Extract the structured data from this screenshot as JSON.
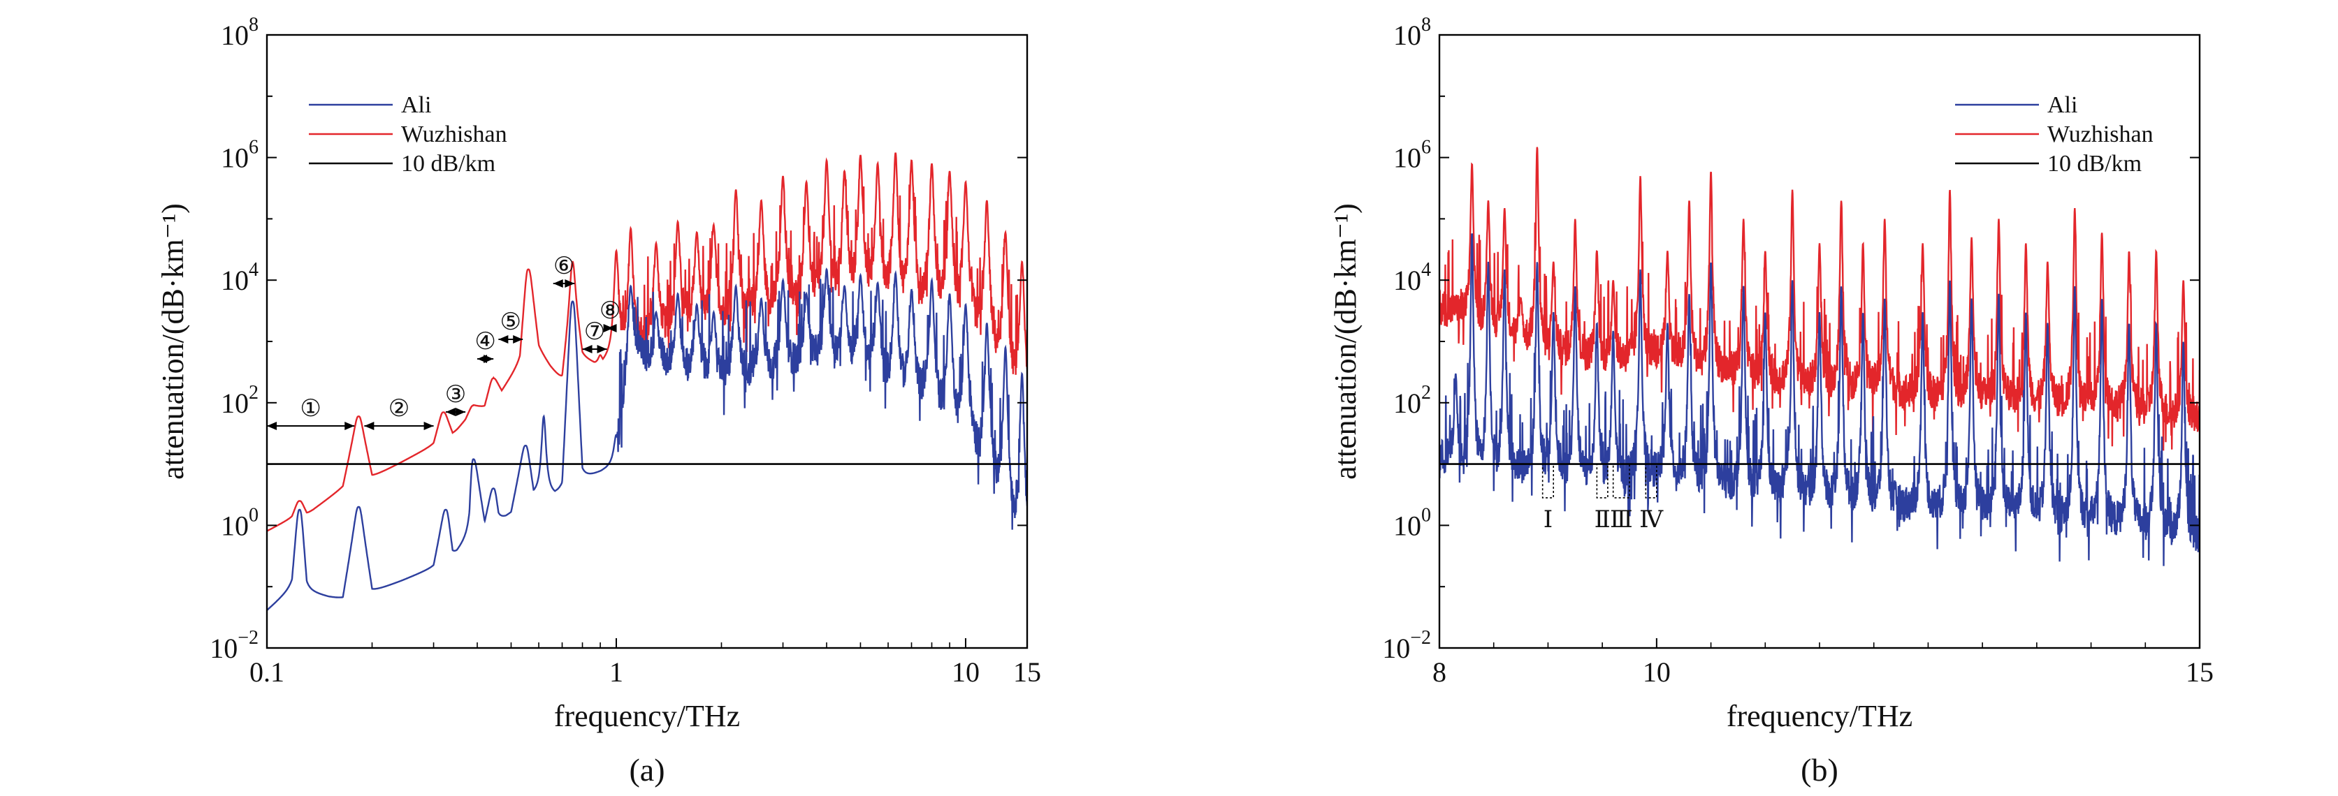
{
  "colors": {
    "ali": "#2d3f9e",
    "wuzhishan": "#e3262b",
    "threshold": "#000000"
  },
  "chart_data": [
    {
      "type": "line",
      "caption": "(a)",
      "xlabel": "frequency/THz",
      "ylabel": "attenuation/(dB·km⁻¹)",
      "x_scale": "log",
      "y_scale": "log",
      "xlim": [
        0.1,
        15
      ],
      "ylim": [
        0.01,
        100000000
      ],
      "x_ticks": [
        "0.1",
        "1",
        "10",
        "15"
      ],
      "y_ticks": [
        {
          "base": "10",
          "exp": "−2"
        },
        {
          "base": "10",
          "exp": "0"
        },
        {
          "base": "10",
          "exp": "2"
        },
        {
          "base": "10",
          "exp": "4"
        },
        {
          "base": "10",
          "exp": "6"
        },
        {
          "base": "10",
          "exp": "8"
        }
      ],
      "legend_position": "top-left",
      "legend": [
        "Ali",
        "Wuzhishan",
        "10 dB/km"
      ],
      "threshold_db_per_km": 10,
      "series": [
        {
          "name": "Ali",
          "x": [
            0.1,
            0.118,
            0.124,
            0.13,
            0.165,
            0.183,
            0.2,
            0.3,
            0.325,
            0.34,
            0.38,
            0.39,
            0.42,
            0.445,
            0.46,
            0.5,
            0.55,
            0.58,
            0.7,
            0.75,
            0.8,
            1.0,
            1.1,
            1.5,
            2.0,
            3.0,
            4.0,
            5.0,
            6.0,
            8.0,
            10.0,
            12.0,
            15.0
          ],
          "y": [
            0.04,
            0.09,
            1.8,
            0.08,
            0.06,
            2.0,
            0.08,
            0.2,
            1.8,
            0.3,
            0.6,
            12,
            1.0,
            4.0,
            1.2,
            1.5,
            20,
            3.0,
            3.0,
            4500,
            5.0,
            10,
            500,
            300,
            200,
            300,
            500,
            400,
            200,
            100,
            30,
            5,
            0.3
          ],
          "peaks": [
            [
              0.124,
              1.8
            ],
            [
              0.183,
              2.0
            ],
            [
              0.325,
              1.8
            ],
            [
              0.39,
              12
            ],
            [
              0.445,
              4
            ],
            [
              0.55,
              20
            ],
            [
              0.62,
              60
            ],
            [
              0.75,
              4500
            ],
            [
              1.0,
              30
            ],
            [
              1.1,
              8000
            ],
            [
              1.3,
              3000
            ],
            [
              1.5,
              6000
            ],
            [
              1.7,
              4000
            ],
            [
              1.9,
              3000
            ],
            [
              2.2,
              8000
            ],
            [
              2.6,
              5000
            ],
            [
              3.0,
              10000
            ],
            [
              3.5,
              6000
            ],
            [
              4.0,
              15000
            ],
            [
              4.5,
              8000
            ],
            [
              5.0,
              12000
            ],
            [
              5.6,
              9000
            ],
            [
              6.3,
              13000
            ],
            [
              7.0,
              7000
            ],
            [
              8.0,
              10000
            ],
            [
              9.0,
              6000
            ],
            [
              10.0,
              4000
            ],
            [
              11.5,
              2000
            ],
            [
              13.0,
              800
            ],
            [
              14.5,
              300
            ]
          ]
        },
        {
          "name": "Wuzhishan",
          "x": [
            0.1,
            0.118,
            0.124,
            0.13,
            0.165,
            0.183,
            0.2,
            0.3,
            0.32,
            0.34,
            0.37,
            0.39,
            0.42,
            0.445,
            0.47,
            0.53,
            0.56,
            0.6,
            0.7,
            0.75,
            0.8,
            0.9,
            1.0,
            1.5,
            2.0,
            3.0,
            4.0,
            5.0,
            6.0,
            8.0,
            10.0,
            12.0,
            15.0
          ],
          "y": [
            0.8,
            1.3,
            2.5,
            1.5,
            4.0,
            60,
            6.0,
            20,
            70,
            30,
            50,
            90,
            80,
            250,
            150,
            400,
            15000,
            700,
            200,
            5000,
            500,
            400,
            600,
            1500,
            2000,
            3000,
            5000,
            6000,
            5000,
            4000,
            3000,
            600,
            100
          ],
          "peaks": [
            [
              0.124,
              2.5
            ],
            [
              0.183,
              60
            ],
            [
              0.32,
              70
            ],
            [
              0.39,
              90
            ],
            [
              0.445,
              250
            ],
            [
              0.56,
              15000
            ],
            [
              0.75,
              20000
            ],
            [
              0.9,
              600
            ],
            [
              1.0,
              30000
            ],
            [
              1.1,
              70000
            ],
            [
              1.3,
              40000
            ],
            [
              1.5,
              90000
            ],
            [
              1.7,
              60000
            ],
            [
              1.9,
              80000
            ],
            [
              2.2,
              300000
            ],
            [
              2.6,
              200000
            ],
            [
              3.0,
              500000
            ],
            [
              3.5,
              400000
            ],
            [
              4.0,
              900000
            ],
            [
              4.5,
              600000
            ],
            [
              5.0,
              1100000
            ],
            [
              5.6,
              800000
            ],
            [
              6.3,
              1200000
            ],
            [
              7.0,
              900000
            ],
            [
              8.0,
              800000
            ],
            [
              9.0,
              600000
            ],
            [
              10.0,
              400000
            ],
            [
              11.5,
              200000
            ],
            [
              13.0,
              60000
            ],
            [
              14.5,
              20000
            ]
          ]
        },
        {
          "name": "10 dB/km",
          "x": [
            0.1,
            15
          ],
          "y": [
            10,
            10
          ]
        }
      ],
      "annotations": [
        {
          "label": "①",
          "from": 0.1,
          "to": 0.178
        },
        {
          "label": "②",
          "from": 0.19,
          "to": 0.3
        },
        {
          "label": "③",
          "from": 0.325,
          "to": 0.37
        },
        {
          "label": "④",
          "from": 0.4,
          "to": 0.445
        },
        {
          "label": "⑤",
          "from": 0.46,
          "to": 0.54
        },
        {
          "label": "⑥",
          "from": 0.66,
          "to": 0.76
        },
        {
          "label": "⑦",
          "from": 0.8,
          "to": 0.94
        },
        {
          "label": "⑧",
          "from": 0.94,
          "to": 0.98
        }
      ]
    },
    {
      "type": "line",
      "caption": "(b)",
      "xlabel": "frequency/THz",
      "ylabel": "attenuation/(dB·km⁻¹)",
      "x_scale": "linear",
      "y_scale": "log",
      "xlim": [
        8,
        15
      ],
      "ylim": [
        0.01,
        100000000
      ],
      "x_ticks": [
        "8",
        "10",
        "15"
      ],
      "y_ticks": [
        {
          "base": "10",
          "exp": "−2"
        },
        {
          "base": "10",
          "exp": "0"
        },
        {
          "base": "10",
          "exp": "2"
        },
        {
          "base": "10",
          "exp": "4"
        },
        {
          "base": "10",
          "exp": "6"
        },
        {
          "base": "10",
          "exp": "8"
        }
      ],
      "legend_position": "top-right",
      "legend": [
        "Ali",
        "Wuzhishan",
        "10 dB/km"
      ],
      "threshold_db_per_km": 10,
      "series": [
        {
          "name": "Ali",
          "x": [
            8.0,
            8.5,
            9.0,
            9.5,
            10.0,
            10.5,
            11.0,
            11.5,
            12.0,
            12.5,
            13.0,
            13.5,
            14.0,
            14.5,
            15.0
          ],
          "y": [
            10,
            8,
            6,
            5,
            6,
            4,
            3,
            2.5,
            2,
            1.5,
            1.5,
            1.2,
            1.0,
            0.8,
            0.5
          ],
          "peaks": [
            [
              8.15,
              300
            ],
            [
              8.3,
              60000
            ],
            [
              8.45,
              20000
            ],
            [
              8.6,
              15000
            ],
            [
              8.9,
              20000
            ],
            [
              9.05,
              3000
            ],
            [
              9.25,
              8000
            ],
            [
              9.45,
              2000
            ],
            [
              9.6,
              1500
            ],
            [
              9.85,
              15000
            ],
            [
              10.1,
              2000
            ],
            [
              10.3,
              6000
            ],
            [
              10.5,
              20000
            ],
            [
              10.8,
              8000
            ],
            [
              11.0,
              3000
            ],
            [
              11.25,
              10000
            ],
            [
              11.5,
              3000
            ],
            [
              11.7,
              8000
            ],
            [
              11.9,
              3000
            ],
            [
              12.1,
              5000
            ],
            [
              12.45,
              3000
            ],
            [
              12.7,
              10000
            ],
            [
              12.9,
              5000
            ],
            [
              13.15,
              6000
            ],
            [
              13.4,
              3000
            ],
            [
              13.6,
              2000
            ],
            [
              13.85,
              8000
            ],
            [
              14.1,
              5000
            ],
            [
              14.35,
              2000
            ],
            [
              14.6,
              2000
            ],
            [
              14.85,
              1000
            ]
          ]
        },
        {
          "name": "Wuzhishan",
          "x": [
            8.0,
            8.5,
            9.0,
            9.5,
            10.0,
            10.5,
            11.0,
            11.5,
            12.0,
            12.5,
            13.0,
            13.5,
            14.0,
            14.5,
            15.0
          ],
          "y": [
            3000,
            1500,
            600,
            400,
            500,
            300,
            200,
            150,
            150,
            100,
            100,
            80,
            80,
            60,
            40
          ],
          "peaks": [
            [
              8.15,
              3000
            ],
            [
              8.3,
              800000
            ],
            [
              8.45,
              200000
            ],
            [
              8.6,
              150000
            ],
            [
              8.75,
              5000
            ],
            [
              8.9,
              1500000
            ],
            [
              9.05,
              20000
            ],
            [
              9.25,
              100000
            ],
            [
              9.45,
              30000
            ],
            [
              9.6,
              10000
            ],
            [
              9.85,
              500000
            ],
            [
              10.1,
              30000
            ],
            [
              10.3,
              200000
            ],
            [
              10.5,
              600000
            ],
            [
              10.8,
              100000
            ],
            [
              11.0,
              30000
            ],
            [
              11.25,
              300000
            ],
            [
              11.5,
              40000
            ],
            [
              11.7,
              200000
            ],
            [
              11.9,
              40000
            ],
            [
              12.1,
              100000
            ],
            [
              12.45,
              40000
            ],
            [
              12.7,
              300000
            ],
            [
              12.9,
              50000
            ],
            [
              13.15,
              100000
            ],
            [
              13.4,
              40000
            ],
            [
              13.6,
              20000
            ],
            [
              13.85,
              150000
            ],
            [
              14.1,
              60000
            ],
            [
              14.35,
              30000
            ],
            [
              14.6,
              30000
            ],
            [
              14.85,
              10000
            ]
          ]
        },
        {
          "name": "10 dB/km",
          "x": [
            8,
            15
          ],
          "y": [
            10,
            10
          ]
        }
      ],
      "windows": [
        {
          "label": "Ⅰ",
          "from": 8.95,
          "to": 9.05
        },
        {
          "label": "Ⅱ",
          "from": 9.45,
          "to": 9.55
        },
        {
          "label": "Ⅲ",
          "from": 9.6,
          "to": 9.75
        },
        {
          "label": "Ⅳ",
          "from": 9.9,
          "to": 10.0
        }
      ]
    }
  ]
}
